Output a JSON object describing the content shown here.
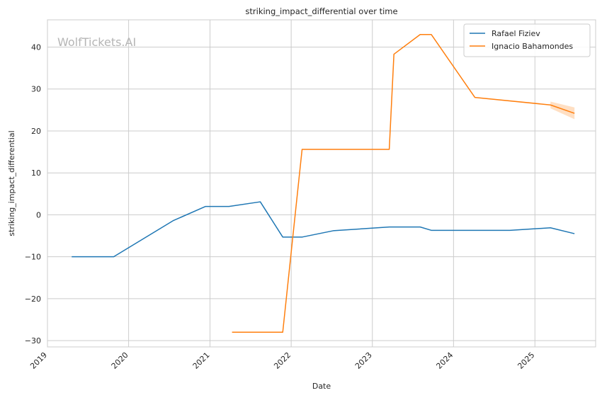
{
  "chart_data": {
    "type": "line",
    "title": "striking_impact_differential over time",
    "xlabel": "Date",
    "ylabel": "striking_impact_differential",
    "watermark": "WolfTickets.AI",
    "x_ticks": [
      "2019",
      "2020",
      "2021",
      "2022",
      "2023",
      "2024",
      "2025"
    ],
    "y_ticks": [
      "−30",
      "−20",
      "−10",
      "0",
      "10",
      "20",
      "30",
      "40"
    ],
    "y_tick_values": [
      -30,
      -20,
      -10,
      0,
      10,
      20,
      30,
      40
    ],
    "xlim": [
      "2019-01-01",
      "2025-10-01"
    ],
    "ylim": [
      -31.5,
      46.5
    ],
    "grid": true,
    "legend_position": "top-right",
    "series": [
      {
        "name": "Rafael Fiziev",
        "color": "#1f77b4",
        "points": [
          [
            "2019-04-20",
            -10
          ],
          [
            "2019-10-26",
            -10
          ],
          [
            "2020-07-19",
            -1.4
          ],
          [
            "2020-12-12",
            2
          ],
          [
            "2021-03-27",
            2
          ],
          [
            "2021-08-15",
            3.1
          ],
          [
            "2021-11-24",
            -5.3
          ],
          [
            "2022-02-20",
            -5.3
          ],
          [
            "2022-07-09",
            -3.8
          ],
          [
            "2023-03-18",
            -2.9
          ],
          [
            "2023-08-04",
            -2.9
          ],
          [
            "2023-09-23",
            -3.7
          ],
          [
            "2024-09-10",
            -3.7
          ],
          [
            "2025-03-12",
            -3.1
          ],
          [
            "2025-06-28",
            -4.5
          ]
        ]
      },
      {
        "name": "Ignacio Bahamondes",
        "color": "#ff7f0e",
        "points": [
          [
            "2021-04-10",
            -28
          ],
          [
            "2021-11-24",
            -28
          ],
          [
            "2022-02-19",
            15.6
          ],
          [
            "2023-03-18",
            15.6
          ],
          [
            "2023-04-08",
            38.3
          ],
          [
            "2023-08-04",
            43
          ],
          [
            "2023-09-23",
            43
          ],
          [
            "2024-04-06",
            28
          ],
          [
            "2025-03-12",
            26.2
          ],
          [
            "2025-06-28",
            24.2
          ]
        ],
        "confidence_band": {
          "x": [
            "2025-03-12",
            "2025-06-28"
          ],
          "upper": [
            27.0,
            25.6
          ],
          "lower": [
            25.4,
            22.8
          ]
        }
      }
    ]
  }
}
